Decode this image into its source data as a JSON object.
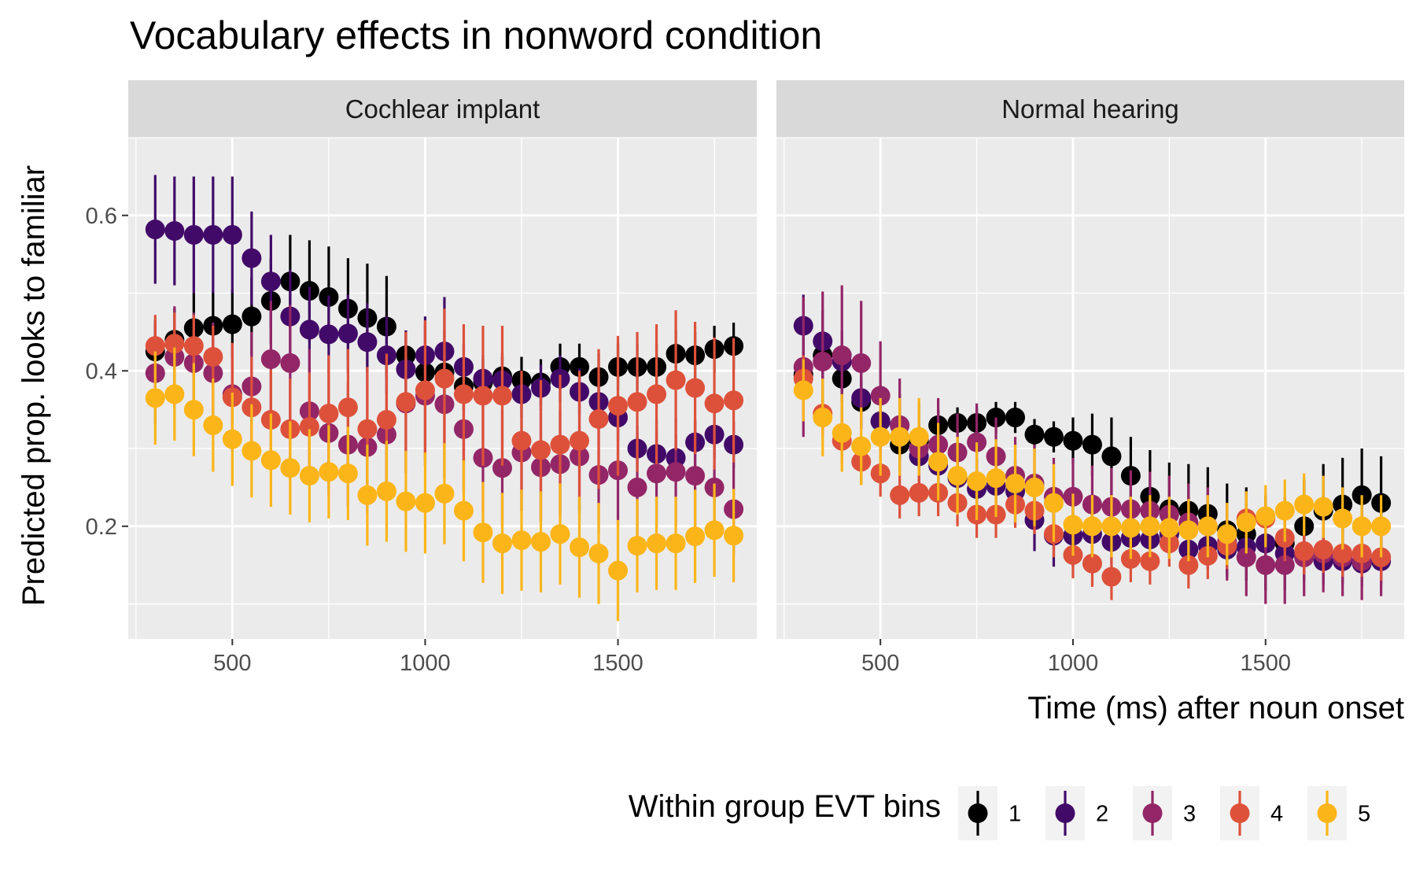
{
  "chart_data": {
    "type": "scatter",
    "title": "Vocabulary effects in nonword condition",
    "xlabel": "Time (ms) after noun onset",
    "ylabel": "Predicted prop. looks to familiar",
    "xlim": [
      230,
      1860
    ],
    "ylim": [
      0.055,
      0.7
    ],
    "x_ticks": [
      500,
      1000,
      1500
    ],
    "x_tick_labels": [
      "500",
      "1000",
      "1500"
    ],
    "y_ticks": [
      0.2,
      0.4,
      0.6
    ],
    "y_tick_labels": [
      "0.2",
      "0.4",
      "0.6"
    ],
    "grid": true,
    "legend": {
      "title": "Within group EVT bins",
      "position": "bottom-right"
    },
    "colors": {
      "1": "#000000",
      "2": "#420A68",
      "3": "#932667",
      "4": "#DD513A",
      "5": "#FCB519"
    },
    "x": [
      300,
      350,
      400,
      450,
      500,
      550,
      600,
      650,
      700,
      750,
      800,
      850,
      900,
      950,
      1000,
      1050,
      1100,
      1150,
      1200,
      1250,
      1300,
      1350,
      1400,
      1450,
      1500,
      1550,
      1600,
      1650,
      1700,
      1750,
      1800
    ],
    "panels": [
      {
        "name": "Cochlear implant",
        "series": [
          {
            "name": "1",
            "y": [
              0.425,
              0.44,
              0.455,
              0.458,
              0.46,
              0.47,
              0.49,
              0.515,
              0.503,
              0.495,
              0.48,
              0.468,
              0.457,
              0.42,
              0.398,
              0.398,
              0.38,
              0.385,
              0.393,
              0.388,
              0.385,
              0.405,
              0.405,
              0.392,
              0.405,
              0.405,
              0.405,
              0.422,
              0.42,
              0.428,
              0.432
            ],
            "halfwidth": [
              0.04,
              0.04,
              0.045,
              0.045,
              0.045,
              0.05,
              0.055,
              0.06,
              0.065,
              0.065,
              0.065,
              0.07,
              0.065,
              0.03,
              0.03,
              0.03,
              0.03,
              0.03,
              0.03,
              0.03,
              0.03,
              0.03,
              0.03,
              0.03,
              0.03,
              0.03,
              0.03,
              0.03,
              0.03,
              0.03,
              0.03
            ]
          },
          {
            "name": "2",
            "y": [
              0.582,
              0.58,
              0.575,
              0.575,
              0.575,
              0.545,
              0.515,
              0.47,
              0.453,
              0.447,
              0.448,
              0.437,
              0.42,
              0.402,
              0.42,
              0.425,
              0.405,
              0.39,
              0.388,
              0.37,
              0.378,
              0.39,
              0.373,
              0.36,
              0.34,
              0.3,
              0.293,
              0.288,
              0.308,
              0.318,
              0.305
            ],
            "halfwidth": [
              0.07,
              0.07,
              0.075,
              0.075,
              0.075,
              0.06,
              0.06,
              0.06,
              0.055,
              0.05,
              0.05,
              0.05,
              0.05,
              0.05,
              0.05,
              0.07,
              0.03,
              0.03,
              0.03,
              0.03,
              0.03,
              0.03,
              0.03,
              0.03,
              0.03,
              0.03,
              0.03,
              0.03,
              0.03,
              0.03,
              0.03
            ]
          },
          {
            "name": "3",
            "y": [
              0.397,
              0.418,
              0.41,
              0.397,
              0.37,
              0.38,
              0.415,
              0.41,
              0.348,
              0.32,
              0.305,
              0.302,
              0.318,
              0.358,
              0.368,
              0.357,
              0.325,
              0.288,
              0.275,
              0.295,
              0.276,
              0.28,
              0.29,
              0.266,
              0.272,
              0.25,
              0.268,
              0.27,
              0.265,
              0.25,
              0.222
            ],
            "halfwidth": [
              0.065,
              0.065,
              0.065,
              0.065,
              0.065,
              0.07,
              0.075,
              0.075,
              0.08,
              0.08,
              0.08,
              0.085,
              0.085,
              0.09,
              0.09,
              0.095,
              0.08,
              0.07,
              0.075,
              0.075,
              0.07,
              0.07,
              0.075,
              0.075,
              0.075,
              0.07,
              0.07,
              0.07,
              0.07,
              0.065,
              0.06
            ]
          },
          {
            "name": "4",
            "y": [
              0.432,
              0.435,
              0.432,
              0.418,
              0.366,
              0.353,
              0.337,
              0.325,
              0.328,
              0.345,
              0.353,
              0.325,
              0.337,
              0.36,
              0.375,
              0.39,
              0.37,
              0.368,
              0.368,
              0.31,
              0.298,
              0.305,
              0.31,
              0.338,
              0.355,
              0.36,
              0.37,
              0.388,
              0.378,
              0.358,
              0.362
            ],
            "halfwidth": [
              0.04,
              0.04,
              0.04,
              0.04,
              0.07,
              0.065,
              0.065,
              0.065,
              0.07,
              0.075,
              0.075,
              0.08,
              0.085,
              0.09,
              0.09,
              0.09,
              0.09,
              0.09,
              0.09,
              0.09,
              0.09,
              0.09,
              0.09,
              0.09,
              0.09,
              0.09,
              0.09,
              0.09,
              0.085,
              0.085,
              0.08
            ]
          },
          {
            "name": "5",
            "y": [
              0.365,
              0.37,
              0.35,
              0.33,
              0.312,
              0.297,
              0.285,
              0.275,
              0.265,
              0.27,
              0.268,
              0.24,
              0.245,
              0.232,
              0.23,
              0.242,
              0.22,
              0.192,
              0.178,
              0.182,
              0.18,
              0.19,
              0.173,
              0.165,
              0.143,
              0.175,
              0.178,
              0.178,
              0.187,
              0.195,
              0.188
            ],
            "halfwidth": [
              0.06,
              0.06,
              0.06,
              0.06,
              0.06,
              0.06,
              0.06,
              0.06,
              0.06,
              0.06,
              0.06,
              0.065,
              0.065,
              0.065,
              0.065,
              0.065,
              0.065,
              0.065,
              0.065,
              0.065,
              0.065,
              0.065,
              0.065,
              0.065,
              0.065,
              0.06,
              0.06,
              0.06,
              0.06,
              0.06,
              0.06
            ]
          }
        ]
      },
      {
        "name": "Normal hearing",
        "series": [
          {
            "name": "1",
            "y": [
              0.395,
              0.42,
              0.39,
              0.36,
              0.335,
              0.305,
              0.31,
              0.33,
              0.333,
              0.333,
              0.34,
              0.34,
              0.318,
              0.315,
              0.31,
              0.305,
              0.29,
              0.265,
              0.238,
              0.222,
              0.22,
              0.216,
              0.195,
              0.19,
              0.178,
              0.178,
              0.2,
              0.22,
              0.228,
              0.24,
              0.23
            ],
            "halfwidth": [
              0.03,
              0.03,
              0.03,
              0.03,
              0.02,
              0.02,
              0.02,
              0.02,
              0.02,
              0.02,
              0.02,
              0.02,
              0.02,
              0.02,
              0.03,
              0.04,
              0.05,
              0.05,
              0.06,
              0.06,
              0.06,
              0.06,
              0.06,
              0.06,
              0.06,
              0.06,
              0.06,
              0.06,
              0.06,
              0.06,
              0.06
            ]
          },
          {
            "name": "2",
            "y": [
              0.458,
              0.438,
              0.412,
              0.365,
              0.335,
              0.33,
              0.29,
              0.278,
              0.262,
              0.248,
              0.252,
              0.245,
              0.208,
              0.188,
              0.188,
              0.19,
              0.18,
              0.185,
              0.183,
              0.19,
              0.17,
              0.175,
              0.17,
              0.173,
              0.178,
              0.165,
              0.16,
              0.155,
              0.155,
              0.152,
              0.155
            ],
            "halfwidth": [
              0.04,
              0.04,
              0.04,
              0.04,
              0.04,
              0.04,
              0.04,
              0.04,
              0.04,
              0.04,
              0.04,
              0.04,
              0.04,
              0.04,
              0.04,
              0.04,
              0.03,
              0.03,
              0.03,
              0.03,
              0.03,
              0.03,
              0.03,
              0.03,
              0.03,
              0.03,
              0.03,
              0.03,
              0.03,
              0.03,
              0.03
            ]
          },
          {
            "name": "3",
            "y": [
              0.405,
              0.412,
              0.42,
              0.41,
              0.368,
              0.33,
              0.3,
              0.305,
              0.295,
              0.308,
              0.29,
              0.265,
              0.255,
              0.238,
              0.238,
              0.228,
              0.225,
              0.222,
              0.22,
              0.215,
              0.205,
              0.2,
              0.18,
              0.16,
              0.15,
              0.15,
              0.16,
              0.165,
              0.16,
              0.155,
              0.16
            ],
            "halfwidth": [
              0.09,
              0.09,
              0.09,
              0.08,
              0.07,
              0.06,
              0.06,
              0.06,
              0.05,
              0.05,
              0.05,
              0.05,
              0.05,
              0.05,
              0.05,
              0.05,
              0.05,
              0.05,
              0.05,
              0.05,
              0.05,
              0.05,
              0.05,
              0.05,
              0.05,
              0.05,
              0.05,
              0.05,
              0.05,
              0.05,
              0.05
            ]
          },
          {
            "name": "4",
            "y": [
              0.39,
              0.345,
              0.31,
              0.283,
              0.268,
              0.24,
              0.243,
              0.243,
              0.23,
              0.215,
              0.215,
              0.228,
              0.22,
              0.19,
              0.163,
              0.152,
              0.135,
              0.158,
              0.155,
              0.178,
              0.15,
              0.162,
              0.175,
              0.21,
              0.21,
              0.185,
              0.168,
              0.17,
              0.165,
              0.165,
              0.16
            ],
            "halfwidth": [
              0.03,
              0.03,
              0.03,
              0.03,
              0.03,
              0.03,
              0.03,
              0.03,
              0.03,
              0.03,
              0.03,
              0.03,
              0.03,
              0.03,
              0.03,
              0.03,
              0.03,
              0.03,
              0.03,
              0.03,
              0.03,
              0.03,
              0.03,
              0.03,
              0.03,
              0.03,
              0.03,
              0.03,
              0.03,
              0.03,
              0.03
            ]
          },
          {
            "name": "5",
            "y": [
              0.375,
              0.34,
              0.32,
              0.303,
              0.315,
              0.315,
              0.315,
              0.283,
              0.265,
              0.258,
              0.262,
              0.255,
              0.25,
              0.23,
              0.202,
              0.2,
              0.2,
              0.198,
              0.2,
              0.198,
              0.195,
              0.2,
              0.19,
              0.205,
              0.213,
              0.22,
              0.228,
              0.225,
              0.21,
              0.2,
              0.2
            ],
            "halfwidth": [
              0.04,
              0.05,
              0.05,
              0.05,
              0.05,
              0.05,
              0.05,
              0.05,
              0.05,
              0.05,
              0.05,
              0.05,
              0.05,
              0.05,
              0.04,
              0.04,
              0.04,
              0.04,
              0.04,
              0.04,
              0.04,
              0.04,
              0.04,
              0.04,
              0.04,
              0.04,
              0.04,
              0.04,
              0.04,
              0.04,
              0.04
            ]
          }
        ]
      }
    ]
  }
}
